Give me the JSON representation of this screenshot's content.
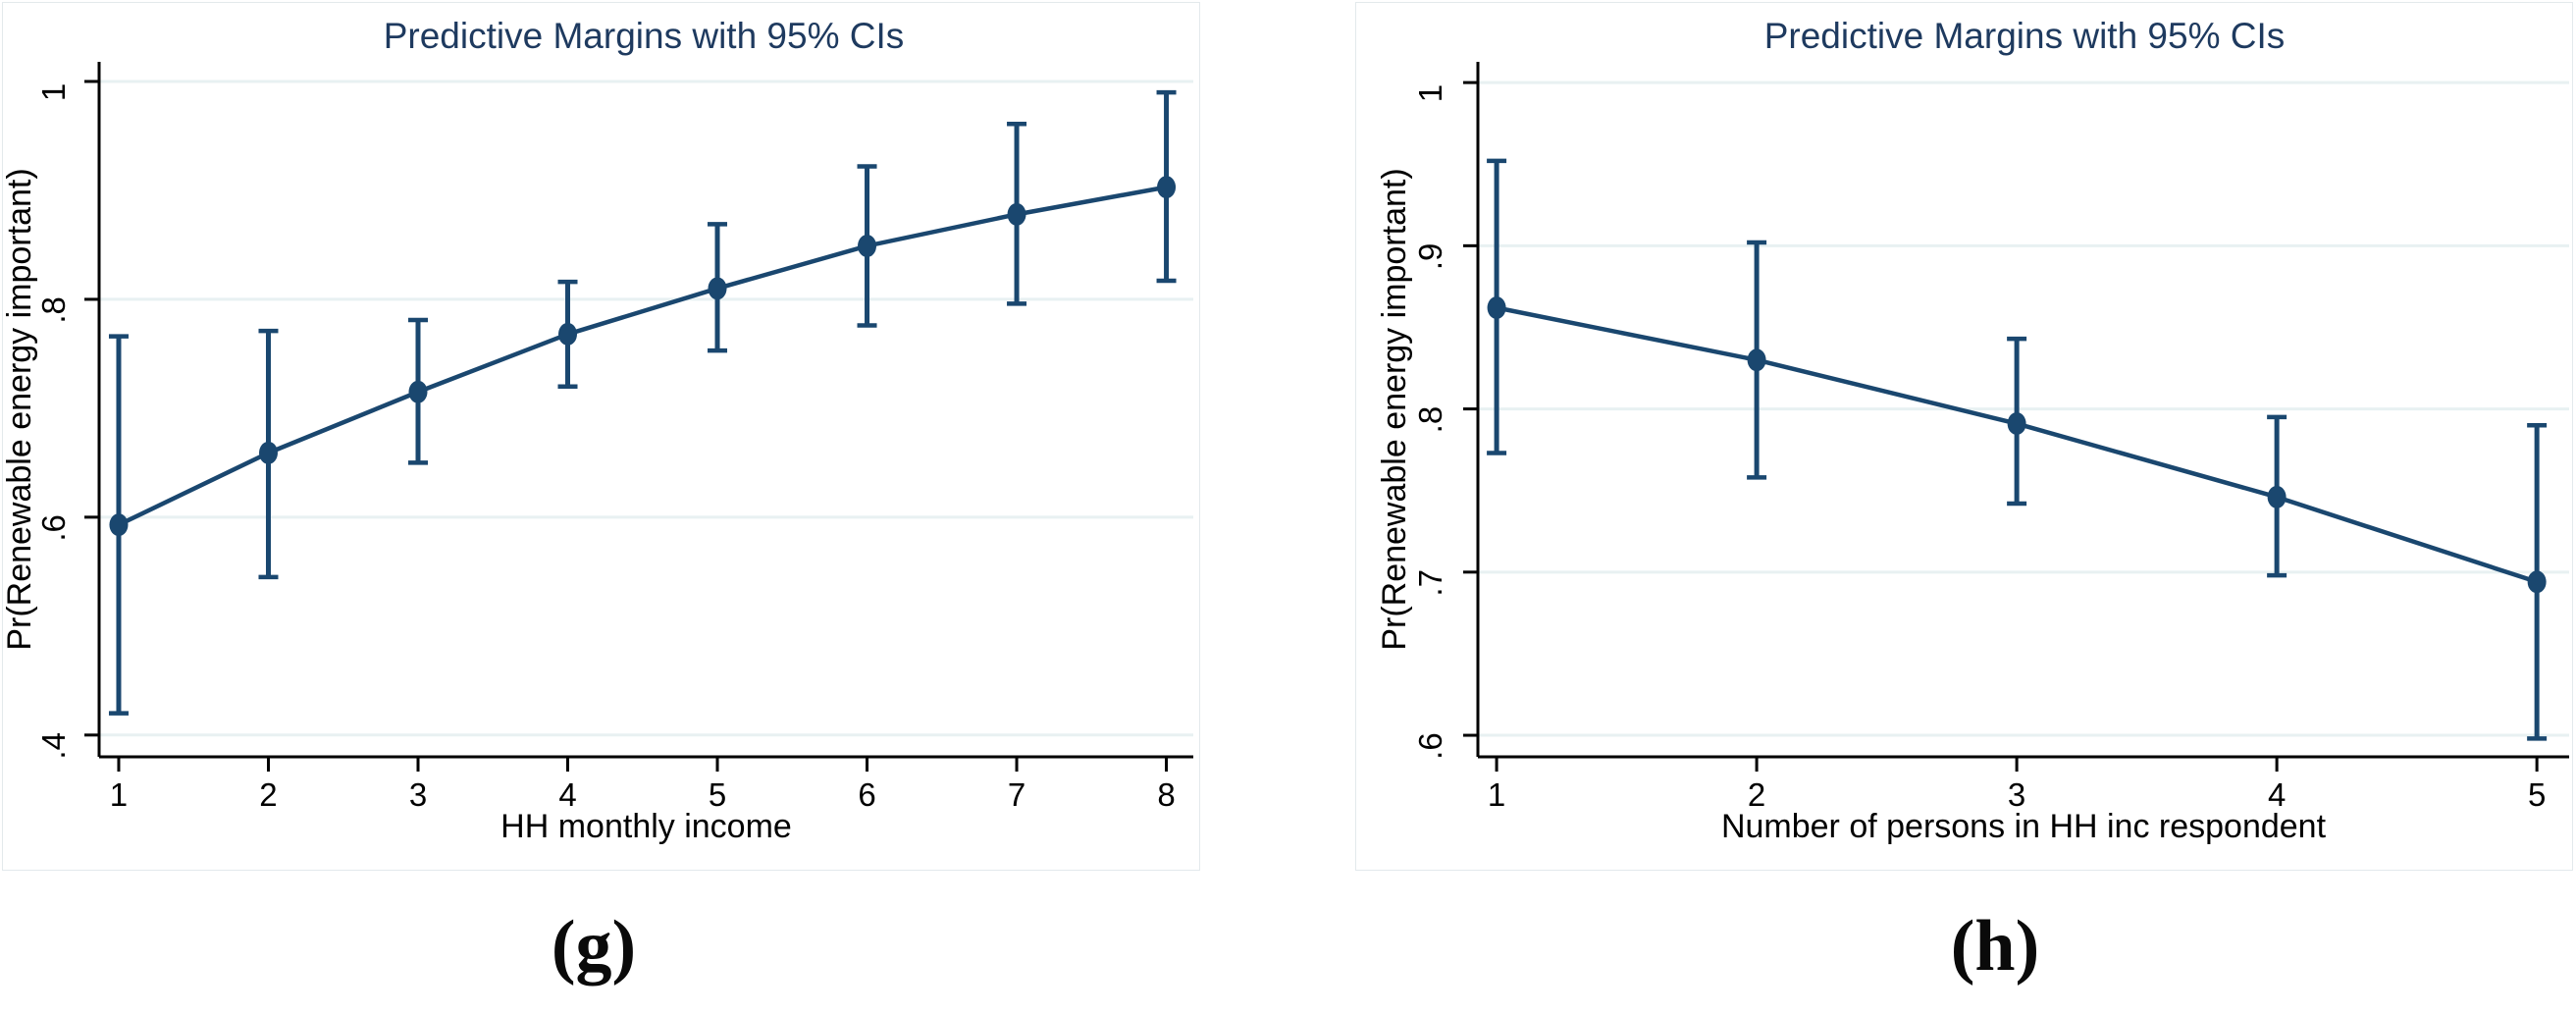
{
  "colors": {
    "line": "#1a476f",
    "marker": "#1a476f",
    "title": "#1e3a5f",
    "grid": "#e8f1f2",
    "axis": "#000000",
    "frame": "#e3e9ec",
    "caption": "#0a0a0a"
  },
  "chart_data": [
    {
      "type": "line",
      "panel": "g",
      "caption": "(g)",
      "title": "Predictive Margins with 95% CIs",
      "xlabel": "HH monthly income",
      "ylabel": "Pr(Renewable energy important)",
      "legend": "none",
      "grid": true,
      "ci_level": "95%",
      "x": [
        1,
        2,
        3,
        4,
        5,
        6,
        7,
        8
      ],
      "xtick_labels": [
        "1",
        "2",
        "3",
        "4",
        "5",
        "6",
        "7",
        "8"
      ],
      "ytick_values": [
        0.4,
        0.6,
        0.8,
        1.0
      ],
      "ytick_labels": [
        ".4",
        ".6",
        ".8",
        "1"
      ],
      "xlim": [
        0.869,
        8.18
      ],
      "ylim": [
        0.38,
        1.018
      ],
      "series": [
        {
          "name": "Predictive margin",
          "values": [
            0.593,
            0.659,
            0.715,
            0.768,
            0.81,
            0.849,
            0.878,
            0.903
          ]
        },
        {
          "name": "95% CI lower",
          "values": [
            0.42,
            0.545,
            0.65,
            0.72,
            0.753,
            0.776,
            0.796,
            0.817
          ]
        },
        {
          "name": "95% CI upper",
          "values": [
            0.766,
            0.771,
            0.781,
            0.816,
            0.869,
            0.922,
            0.961,
            0.99
          ]
        }
      ]
    },
    {
      "type": "line",
      "panel": "h",
      "caption": "(h)",
      "title": "Predictive Margins with 95% CIs",
      "xlabel": "Number of persons in HH inc respondent",
      "ylabel": "Pr(Renewable energy important)",
      "legend": "none",
      "grid": true,
      "ci_level": "95%",
      "x": [
        1,
        2,
        3,
        4,
        5
      ],
      "xtick_labels": [
        "1",
        "2",
        "3",
        "4",
        "5"
      ],
      "ytick_values": [
        0.6,
        0.7,
        0.8,
        0.9,
        1.0
      ],
      "ytick_labels": [
        ".6",
        ".7",
        ".8",
        ".9",
        "1"
      ],
      "xlim": [
        0.928,
        5.124
      ],
      "ylim": [
        0.5868,
        1.0127
      ],
      "series": [
        {
          "name": "Predictive margin",
          "values": [
            0.862,
            0.83,
            0.791,
            0.746,
            0.694
          ]
        },
        {
          "name": "95% CI lower",
          "values": [
            0.773,
            0.758,
            0.742,
            0.698,
            0.598
          ]
        },
        {
          "name": "95% CI upper",
          "values": [
            0.952,
            0.902,
            0.843,
            0.795,
            0.79
          ]
        }
      ]
    }
  ]
}
